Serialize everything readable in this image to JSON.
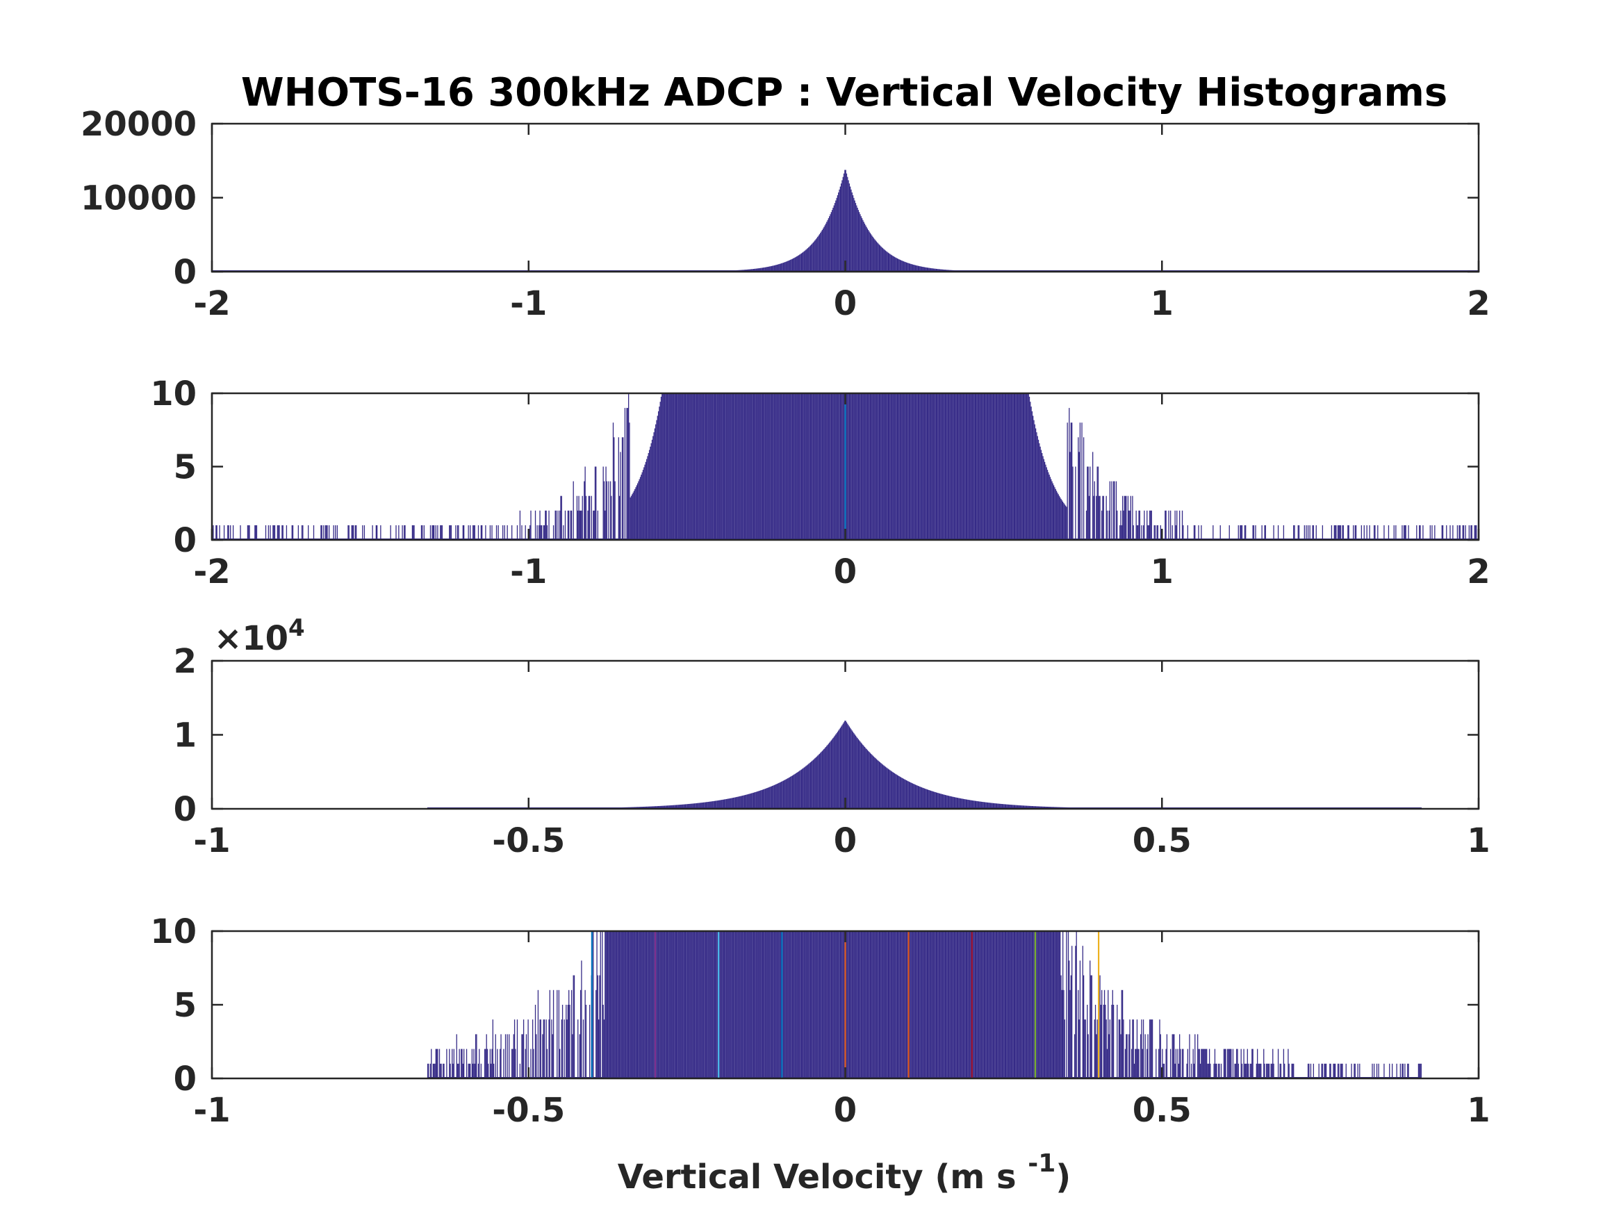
{
  "figure": {
    "title": "WHOTS-16 300kHz ADCP : Vertical Velocity Histograms",
    "xlabel": "Vertical Velocity (m s",
    "xlabel_superscript": "-1",
    "xlabel_close": ")"
  },
  "colors": {
    "bars": "#352a87",
    "axes": "#262626",
    "background": "#ffffff",
    "marker_lines": [
      "#0072bd",
      "#7e2f8e",
      "#4dbeee",
      "#0072bd",
      "#d95319",
      "#d95319",
      "#a2142f",
      "#77ac30",
      "#edb120"
    ]
  },
  "chart_data": [
    {
      "type": "bar",
      "subplot": 1,
      "xlim": [
        -2,
        2
      ],
      "ylim": [
        0,
        20000
      ],
      "xticks": [
        -2,
        -1,
        0,
        1,
        2
      ],
      "xtick_labels": [
        "-2",
        "-1",
        "0",
        "1",
        "2"
      ],
      "yticks": [
        0,
        10000,
        20000
      ],
      "ytick_labels": [
        "0",
        "10000",
        "20000"
      ],
      "distribution": {
        "shape": "laplace-like",
        "center": 0.0,
        "peak_count": 14000,
        "half_width": 0.08,
        "support": [
          -2,
          2
        ]
      },
      "markers": []
    },
    {
      "type": "bar",
      "subplot": 2,
      "xlim": [
        -2,
        2
      ],
      "ylim": [
        0,
        10
      ],
      "xticks": [
        -2,
        -1,
        0,
        1,
        2
      ],
      "xtick_labels": [
        "-2",
        "-1",
        "0",
        "1",
        "2"
      ],
      "yticks": [
        0,
        5,
        10
      ],
      "ytick_labels": [
        "0",
        "5",
        "10"
      ],
      "distribution": {
        "shape": "laplace-like",
        "center": 0.0,
        "peak_count": 14000,
        "half_width": 0.08,
        "support": [
          -2,
          2
        ],
        "clipped_at": 10,
        "saturated_range": [
          -0.68,
          0.7
        ]
      },
      "markers": [
        0.0
      ]
    },
    {
      "type": "bar",
      "subplot": 3,
      "xlim": [
        -1,
        1
      ],
      "ylim": [
        0,
        20000
      ],
      "xticks": [
        -1,
        -0.5,
        0,
        0.5,
        1
      ],
      "xtick_labels": [
        "-1",
        "-0.5",
        "0",
        "0.5",
        "1"
      ],
      "yticks": [
        0,
        10000,
        20000
      ],
      "ytick_labels": [
        "0",
        "1",
        "2"
      ],
      "y_exponent_label": "×10",
      "y_exponent_power": "4",
      "distribution": {
        "shape": "laplace-like",
        "center": 0.0,
        "peak_count": 12000,
        "half_width": 0.085,
        "support": [
          -0.66,
          0.91
        ]
      },
      "markers": []
    },
    {
      "type": "bar",
      "subplot": 4,
      "xlim": [
        -1,
        1
      ],
      "ylim": [
        0,
        10
      ],
      "xticks": [
        -1,
        -0.5,
        0,
        0.5,
        1
      ],
      "xtick_labels": [
        "-1",
        "-0.5",
        "0",
        "0.5",
        "1"
      ],
      "yticks": [
        0,
        5,
        10
      ],
      "ytick_labels": [
        "0",
        "5",
        "10"
      ],
      "distribution": {
        "shape": "laplace-like",
        "center": 0.0,
        "peak_count": 12000,
        "half_width": 0.085,
        "support": [
          -0.66,
          0.91
        ],
        "clipped_at": 10,
        "saturated_range": [
          -0.38,
          0.34
        ]
      },
      "markers": [
        -0.4,
        -0.3,
        -0.2,
        -0.1,
        0.0,
        0.1,
        0.2,
        0.3,
        0.4
      ]
    }
  ]
}
